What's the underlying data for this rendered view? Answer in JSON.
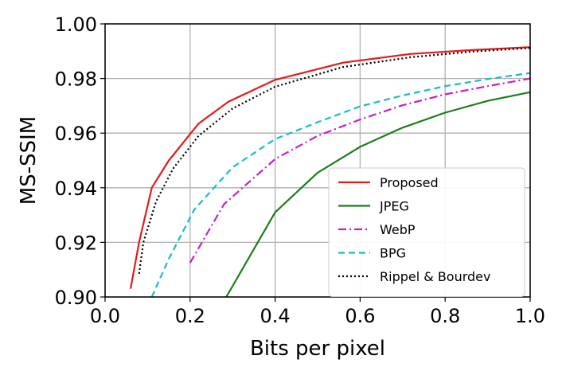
{
  "chart_data": {
    "type": "line",
    "xlabel": "Bits per pixel",
    "ylabel": "MS-SSIM",
    "xlim": [
      0.0,
      1.0
    ],
    "ylim": [
      0.9,
      1.0
    ],
    "x_ticks": [
      "0.0",
      "0.2",
      "0.4",
      "0.6",
      "0.8",
      "1.0"
    ],
    "y_ticks": [
      "0.90",
      "0.92",
      "0.94",
      "0.96",
      "0.98",
      "1.00"
    ],
    "grid": true,
    "legend_position": "lower-right",
    "series": [
      {
        "name": "Proposed",
        "color": "#e41a1c",
        "style": "solid",
        "points": [
          [
            0.06,
            0.903
          ],
          [
            0.08,
            0.92
          ],
          [
            0.11,
            0.94
          ],
          [
            0.15,
            0.95
          ],
          [
            0.22,
            0.9635
          ],
          [
            0.29,
            0.9715
          ],
          [
            0.4,
            0.9795
          ],
          [
            0.56,
            0.9858
          ],
          [
            0.72,
            0.989
          ],
          [
            0.87,
            0.9905
          ],
          [
            1.0,
            0.9915
          ]
        ]
      },
      {
        "name": "JPEG",
        "color": "#1a7f1a",
        "style": "solid",
        "points": [
          [
            0.285,
            0.9
          ],
          [
            0.3,
            0.904
          ],
          [
            0.4,
            0.931
          ],
          [
            0.5,
            0.9455
          ],
          [
            0.6,
            0.955
          ],
          [
            0.7,
            0.962
          ],
          [
            0.8,
            0.9675
          ],
          [
            0.9,
            0.9718
          ],
          [
            1.0,
            0.975
          ]
        ]
      },
      {
        "name": "WebP",
        "color": "#c71ec7",
        "style": "dashdot",
        "points": [
          [
            0.2,
            0.9125
          ],
          [
            0.28,
            0.934
          ],
          [
            0.4,
            0.9505
          ],
          [
            0.5,
            0.959
          ],
          [
            0.6,
            0.965
          ],
          [
            0.7,
            0.9702
          ],
          [
            0.8,
            0.9742
          ],
          [
            0.9,
            0.9772
          ],
          [
            1.0,
            0.98
          ]
        ]
      },
      {
        "name": "BPG",
        "color": "#17bfbf",
        "style": "dashed",
        "points": [
          [
            0.11,
            0.9
          ],
          [
            0.15,
            0.914
          ],
          [
            0.21,
            0.932
          ],
          [
            0.3,
            0.9475
          ],
          [
            0.4,
            0.9578
          ],
          [
            0.5,
            0.964
          ],
          [
            0.6,
            0.9698
          ],
          [
            0.7,
            0.9738
          ],
          [
            0.8,
            0.9772
          ],
          [
            0.9,
            0.9798
          ],
          [
            1.0,
            0.982
          ]
        ]
      },
      {
        "name": "Rippel & Bourdev",
        "color": "#000000",
        "style": "dotted",
        "points": [
          [
            0.08,
            0.9085
          ],
          [
            0.09,
            0.92
          ],
          [
            0.12,
            0.935
          ],
          [
            0.16,
            0.947
          ],
          [
            0.22,
            0.959
          ],
          [
            0.3,
            0.969
          ],
          [
            0.4,
            0.977
          ],
          [
            0.56,
            0.9842
          ],
          [
            0.72,
            0.9878
          ],
          [
            0.86,
            0.9898
          ],
          [
            1.0,
            0.9912
          ]
        ]
      }
    ]
  }
}
